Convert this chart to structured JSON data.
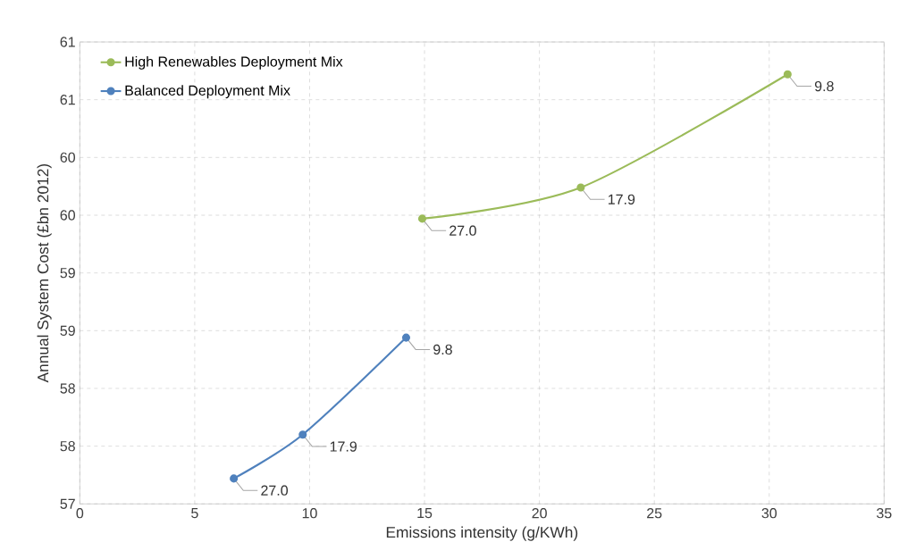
{
  "chart_data": {
    "type": "line",
    "xlabel": "Emissions intensity (g/KWh)",
    "ylabel": "Annual System Cost (£bn 2012)",
    "series": [
      {
        "name": "High Renewables Deployment Mix",
        "color": "#9bbb59",
        "x": [
          14.9,
          21.8,
          30.8
        ],
        "values": [
          59.47,
          59.74,
          60.72
        ]
      },
      {
        "name": "Balanced Deployment Mix",
        "color": "#4f81bd",
        "x": [
          6.7,
          9.7,
          14.2
        ],
        "values": [
          57.22,
          57.6,
          58.44
        ]
      }
    ],
    "xlim": [
      0,
      35
    ],
    "xticks": [
      0,
      5,
      10,
      15,
      20,
      25,
      30,
      35
    ],
    "ylim": [
      57,
      61
    ],
    "yticks": [
      57,
      {
        "value": 57.5,
        "label": "58"
      },
      58,
      {
        "value": 58.5,
        "label": "59"
      },
      59,
      {
        "value": 59.5,
        "label": "60"
      },
      60,
      {
        "value": 60.5,
        "label": "61"
      },
      61
    ],
    "grid": true,
    "legend": "top left",
    "marker": "circle",
    "line_style": "solid",
    "annotations": [
      {
        "text": "27.0",
        "x": 14.9,
        "y": 59.47
      },
      {
        "text": "17.9",
        "x": 21.8,
        "y": 59.74
      },
      {
        "text": "9.8",
        "x": 30.8,
        "y": 60.72
      },
      {
        "text": "27.0",
        "x": 6.7,
        "y": 57.22
      },
      {
        "text": "17.9",
        "x": 9.7,
        "y": 57.6
      },
      {
        "text": "9.8",
        "x": 14.2,
        "y": 58.44
      }
    ]
  }
}
